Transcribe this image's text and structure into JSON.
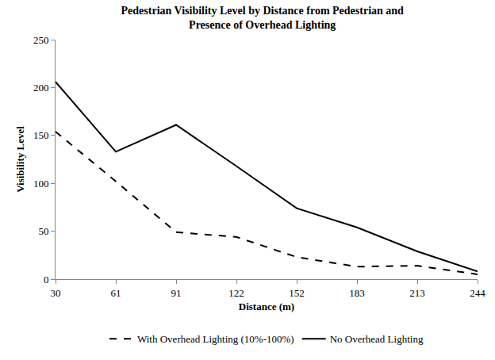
{
  "chart_data": {
    "type": "line",
    "title": "Pedestrian Visibility Level by Distance from Pedestrian and Presence of Overhead Lighting",
    "title_lines": [
      "Pedestrian Visibility Level by Distance from Pedestrian and",
      "Presence of Overhead Lighting"
    ],
    "x_label": "Distance (m)",
    "y_label": "Visibility Level",
    "categories": [
      "30",
      "61",
      "91",
      "122",
      "152",
      "183",
      "213",
      "244"
    ],
    "series": [
      {
        "name": "With Overhead Lighting (10%-100%)",
        "color": "#000000",
        "line_style": "dash",
        "values": [
          154,
          102,
          49,
          44,
          23,
          13,
          14,
          5
        ]
      },
      {
        "name": "No Overhead Lighting",
        "color": "#000000",
        "line_style": "solid",
        "values": [
          206,
          133,
          161,
          118,
          74,
          54,
          29,
          8
        ]
      }
    ],
    "ylim": [
      0,
      250
    ],
    "yticks": [
      0,
      50,
      100,
      150,
      200,
      250
    ],
    "grid": false,
    "legend": "bottom"
  }
}
